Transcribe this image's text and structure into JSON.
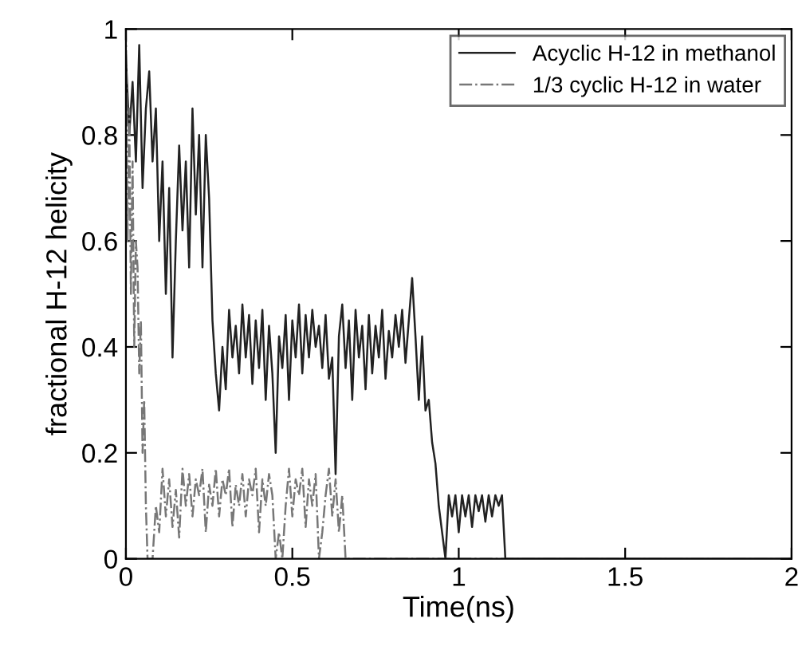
{
  "chart_data": {
    "type": "line",
    "xlabel": "Time(ns)",
    "ylabel": "fractional H-12 helicity",
    "xlim": [
      0,
      2
    ],
    "ylim": [
      0,
      1
    ],
    "xticks": [
      0,
      0.5,
      1,
      1.5,
      2
    ],
    "yticks": [
      0,
      0.2,
      0.4,
      0.6,
      0.8,
      1
    ],
    "grid": false,
    "legend": "top right",
    "marker": "none",
    "series": [
      {
        "name": "Acyclic H-12 in methanol",
        "color": "#222222",
        "line_style": "solid",
        "x": [
          0,
          0.01,
          0.02,
          0.03,
          0.04,
          0.05,
          0.06,
          0.07,
          0.08,
          0.09,
          0.1,
          0.11,
          0.12,
          0.13,
          0.14,
          0.15,
          0.16,
          0.17,
          0.18,
          0.19,
          0.2,
          0.21,
          0.22,
          0.23,
          0.24,
          0.25,
          0.26,
          0.27,
          0.28,
          0.29,
          0.3,
          0.31,
          0.32,
          0.33,
          0.34,
          0.35,
          0.36,
          0.37,
          0.38,
          0.39,
          0.4,
          0.41,
          0.42,
          0.43,
          0.44,
          0.45,
          0.46,
          0.47,
          0.48,
          0.49,
          0.5,
          0.51,
          0.52,
          0.53,
          0.54,
          0.55,
          0.56,
          0.57,
          0.58,
          0.59,
          0.6,
          0.61,
          0.62,
          0.63,
          0.64,
          0.65,
          0.66,
          0.67,
          0.68,
          0.69,
          0.7,
          0.71,
          0.72,
          0.73,
          0.74,
          0.75,
          0.76,
          0.77,
          0.78,
          0.79,
          0.8,
          0.81,
          0.82,
          0.83,
          0.84,
          0.85,
          0.86,
          0.87,
          0.88,
          0.89,
          0.9,
          0.91,
          0.92,
          0.93,
          0.94,
          0.95,
          0.96,
          0.97,
          0.98,
          0.99,
          1.0,
          1.01,
          1.02,
          1.03,
          1.04,
          1.05,
          1.06,
          1.07,
          1.08,
          1.09,
          1.1,
          1.11,
          1.12,
          1.13,
          1.14,
          2.0
        ],
        "values": [
          0.95,
          0.8,
          0.9,
          0.75,
          0.97,
          0.7,
          0.85,
          0.92,
          0.75,
          0.85,
          0.6,
          0.75,
          0.5,
          0.7,
          0.38,
          0.6,
          0.78,
          0.62,
          0.75,
          0.55,
          0.85,
          0.65,
          0.8,
          0.55,
          0.8,
          0.68,
          0.45,
          0.35,
          0.28,
          0.4,
          0.32,
          0.47,
          0.38,
          0.44,
          0.35,
          0.48,
          0.38,
          0.46,
          0.33,
          0.45,
          0.36,
          0.47,
          0.3,
          0.44,
          0.35,
          0.2,
          0.42,
          0.36,
          0.46,
          0.3,
          0.45,
          0.38,
          0.48,
          0.35,
          0.46,
          0.38,
          0.47,
          0.4,
          0.44,
          0.36,
          0.46,
          0.34,
          0.38,
          0.16,
          0.42,
          0.48,
          0.36,
          0.45,
          0.3,
          0.47,
          0.38,
          0.44,
          0.32,
          0.46,
          0.35,
          0.44,
          0.38,
          0.47,
          0.34,
          0.43,
          0.38,
          0.46,
          0.4,
          0.47,
          0.37,
          0.45,
          0.53,
          0.42,
          0.3,
          0.42,
          0.28,
          0.3,
          0.22,
          0.18,
          0.1,
          0.05,
          0.0,
          0.12,
          0.08,
          0.12,
          0.05,
          0.12,
          0.08,
          0.12,
          0.06,
          0.12,
          0.09,
          0.12,
          0.07,
          0.12,
          0.08,
          0.12,
          0.1,
          0.12,
          0.0,
          0.0
        ]
      },
      {
        "name": "1/3 cyclic H-12 in water",
        "color": "#777777",
        "line_style": "dashdot",
        "x": [
          0,
          0.005,
          0.01,
          0.015,
          0.02,
          0.025,
          0.03,
          0.035,
          0.04,
          0.045,
          0.05,
          0.055,
          0.06,
          0.065,
          0.08,
          0.09,
          0.1,
          0.11,
          0.12,
          0.13,
          0.14,
          0.15,
          0.16,
          0.17,
          0.18,
          0.19,
          0.2,
          0.21,
          0.22,
          0.23,
          0.24,
          0.25,
          0.26,
          0.27,
          0.28,
          0.29,
          0.3,
          0.31,
          0.32,
          0.33,
          0.34,
          0.35,
          0.36,
          0.37,
          0.38,
          0.39,
          0.4,
          0.41,
          0.42,
          0.43,
          0.44,
          0.45,
          0.46,
          0.47,
          0.48,
          0.49,
          0.5,
          0.51,
          0.52,
          0.53,
          0.54,
          0.55,
          0.56,
          0.57,
          0.58,
          0.59,
          0.6,
          0.61,
          0.62,
          0.63,
          0.64,
          0.65,
          0.66,
          2.0
        ],
        "values": [
          1.0,
          0.6,
          0.85,
          0.5,
          0.75,
          0.4,
          0.6,
          0.55,
          0.35,
          0.45,
          0.2,
          0.3,
          0.1,
          0.0,
          0.0,
          0.1,
          0.05,
          0.17,
          0.08,
          0.15,
          0.06,
          0.13,
          0.04,
          0.17,
          0.1,
          0.16,
          0.08,
          0.15,
          0.12,
          0.17,
          0.05,
          0.14,
          0.1,
          0.17,
          0.08,
          0.15,
          0.12,
          0.17,
          0.06,
          0.14,
          0.1,
          0.16,
          0.08,
          0.15,
          0.12,
          0.17,
          0.05,
          0.15,
          0.1,
          0.16,
          0.12,
          0.0,
          0.05,
          0.0,
          0.1,
          0.17,
          0.08,
          0.15,
          0.12,
          0.17,
          0.06,
          0.15,
          0.1,
          0.16,
          0.0,
          0.05,
          0.12,
          0.17,
          0.08,
          0.15,
          0.05,
          0.12,
          0.0,
          0.0
        ]
      }
    ]
  }
}
